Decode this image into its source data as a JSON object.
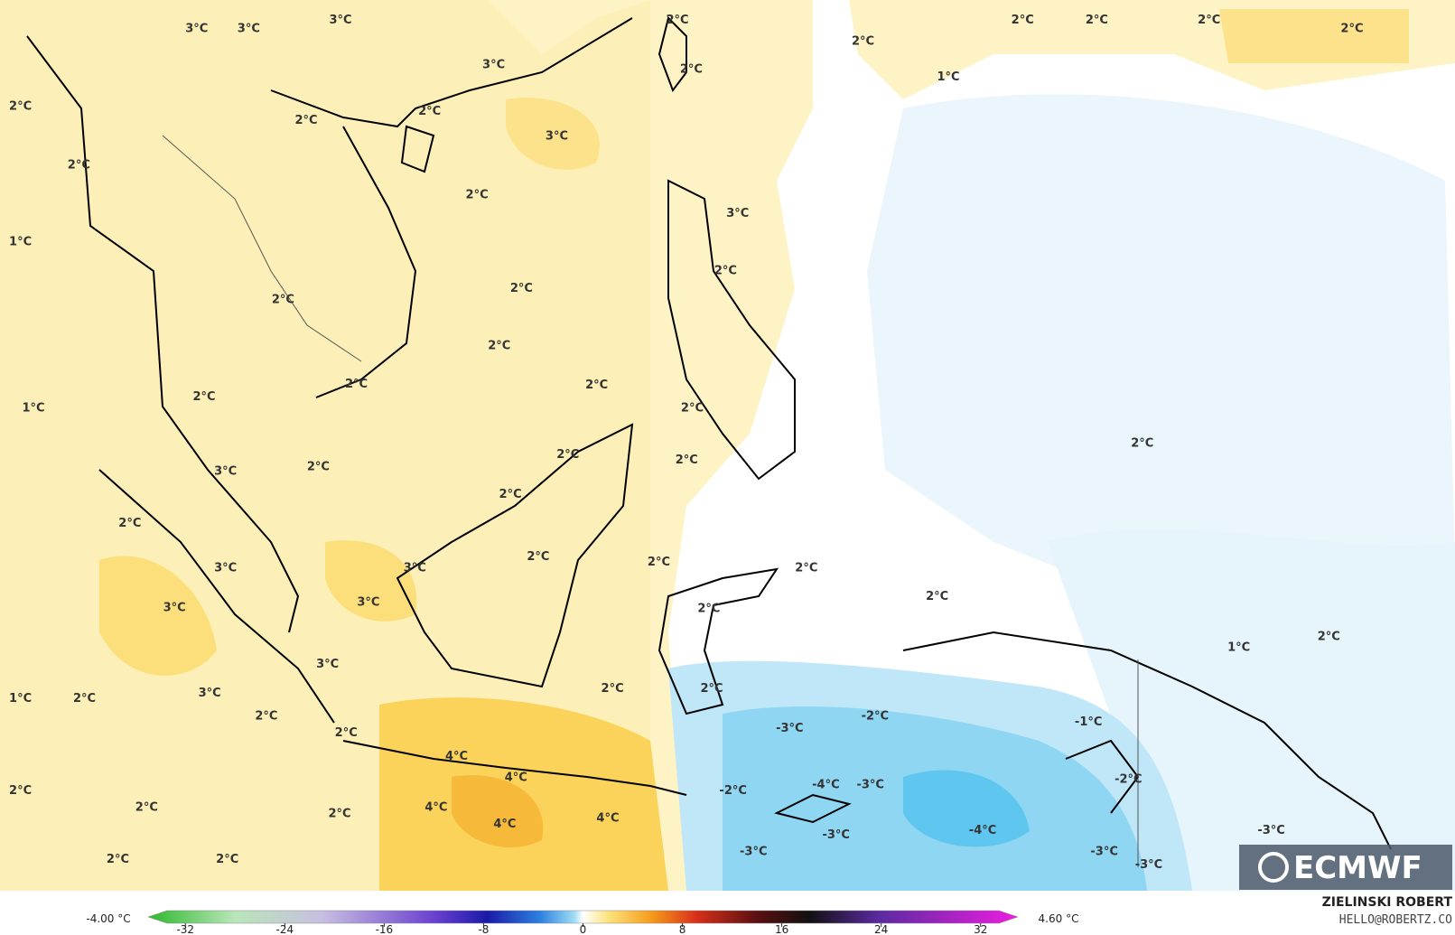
{
  "map": {
    "labels": [
      "3°C",
      "3°C",
      "3°C",
      "2°C",
      "2°C",
      "2°C",
      "2°C",
      "2°C",
      "2°C",
      "3°C",
      "2°C",
      "1°C",
      "2°C",
      "2°C",
      "2°C",
      "3°C",
      "2°C",
      "2°C",
      "3°C",
      "1°C",
      "2°C",
      "2°C",
      "2°C",
      "2°C",
      "2°C",
      "2°C",
      "1°C",
      "2°C",
      "2°C",
      "2°C",
      "2°C",
      "2°C",
      "3°C",
      "2°C",
      "2°C",
      "2°C",
      "2°C",
      "3°C",
      "3°C",
      "2°C",
      "2°C",
      "2°C",
      "3°C",
      "3°C",
      "2°C",
      "1°C",
      "2°C",
      "3°C",
      "2°C",
      "2°C",
      "1°C",
      "2°C",
      "3°C",
      "2°C",
      "-3°C",
      "-2°C",
      "-1°C",
      "2°C",
      "4°C",
      "4°C",
      "-2°C",
      "-4°C",
      "-3°C",
      "-2°C",
      "2°C",
      "2°C",
      "2°C",
      "4°C",
      "4°C",
      "4°C",
      "-4°C",
      "-3°C",
      "-3°C",
      "-3°C",
      "-3°C",
      "-3°C",
      "2°C",
      "2°C"
    ]
  },
  "colorbar": {
    "min_label": "-4.00 °C",
    "max_label": "4.60 °C",
    "lim": [
      -35,
      35
    ],
    "ticks": [
      -32,
      -24,
      -16,
      -8,
      0,
      8,
      16,
      24,
      32
    ]
  },
  "credits": {
    "author": "ZIELINSKI ROBERT",
    "email": "HELLO@ROBERTZ.CO",
    "logo": "ECMWF"
  }
}
